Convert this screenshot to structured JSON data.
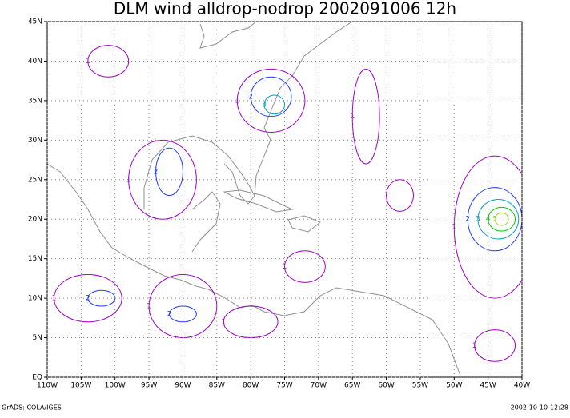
{
  "chart_data": {
    "type": "contour-map",
    "title": "DLM wind alldrop-nodrop 2002091006 12h",
    "xlim": [
      -110,
      -40
    ],
    "ylim": [
      0,
      45
    ],
    "xticks": [
      {
        "value": -110,
        "label": "110W"
      },
      {
        "value": -105,
        "label": "105W"
      },
      {
        "value": -100,
        "label": "100W"
      },
      {
        "value": -95,
        "label": "95W"
      },
      {
        "value": -90,
        "label": "90W"
      },
      {
        "value": -85,
        "label": "85W"
      },
      {
        "value": -80,
        "label": "80W"
      },
      {
        "value": -75,
        "label": "75W"
      },
      {
        "value": -70,
        "label": "70W"
      },
      {
        "value": -65,
        "label": "65W"
      },
      {
        "value": -60,
        "label": "60W"
      },
      {
        "value": -55,
        "label": "55W"
      },
      {
        "value": -50,
        "label": "50W"
      },
      {
        "value": -45,
        "label": "45W"
      },
      {
        "value": -40,
        "label": "40W"
      }
    ],
    "yticks": [
      {
        "value": 0,
        "label": "EQ"
      },
      {
        "value": 5,
        "label": "5N"
      },
      {
        "value": 10,
        "label": "10N"
      },
      {
        "value": 15,
        "label": "15N"
      },
      {
        "value": 20,
        "label": "20N"
      },
      {
        "value": 25,
        "label": "25N"
      },
      {
        "value": 30,
        "label": "30N"
      },
      {
        "value": 35,
        "label": "35N"
      },
      {
        "value": 40,
        "label": "40N"
      },
      {
        "value": 45,
        "label": "45N"
      }
    ],
    "grid": true,
    "contour_levels": [
      {
        "level": 1,
        "color": "#a000c8"
      },
      {
        "level": 2,
        "color": "#1e3cff"
      },
      {
        "level": 3,
        "color": "#00a0c8"
      },
      {
        "level": 4,
        "color": "#00c800"
      },
      {
        "level": 5,
        "color": "#a0d232"
      }
    ],
    "footer_left": "GrADS: COLA/IGES",
    "footer_right": "2002-10-10-12:28"
  }
}
